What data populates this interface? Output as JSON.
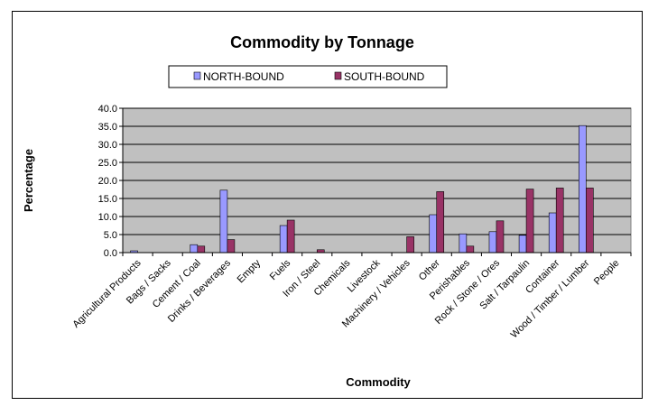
{
  "chart_data": {
    "type": "bar",
    "title": "Commodity by Tonnage",
    "xlabel": "Commodity",
    "ylabel": "Percentage",
    "ylim": [
      0,
      40
    ],
    "yticks": [
      "0.0",
      "5.0",
      "10.0",
      "15.0",
      "20.0",
      "25.0",
      "30.0",
      "35.0",
      "40.0"
    ],
    "grid": true,
    "legend_position": "top",
    "categories": [
      "Agricultural Products",
      "Bags / Sacks",
      "Cement / Coal",
      "Drinks / Beverages",
      "Empty",
      "Fuels",
      "Iron / Steel",
      "Chemicals",
      "Livestock",
      "Machinery / Vehicles",
      "Other",
      "Perishables",
      "Rock / Stone / Ores",
      "Salt / Tarpaulin",
      "Container",
      "Wood / Timber / Lumber",
      "People"
    ],
    "series": [
      {
        "name": "NORTH-BOUND",
        "color": "#9999ff",
        "values": [
          0.5,
          0.0,
          2.2,
          17.3,
          0.0,
          7.5,
          0.0,
          0.0,
          0.0,
          0.0,
          10.5,
          5.2,
          5.8,
          4.8,
          11.0,
          35.2,
          0.0
        ]
      },
      {
        "name": "SOUTH-BOUND",
        "color": "#993366",
        "values": [
          0.0,
          0.0,
          1.8,
          3.6,
          0.0,
          9.0,
          0.8,
          0.0,
          0.0,
          4.4,
          16.9,
          1.8,
          8.8,
          17.6,
          17.9,
          17.9,
          0.0
        ]
      }
    ],
    "plot_background": "#c0c0c0"
  }
}
